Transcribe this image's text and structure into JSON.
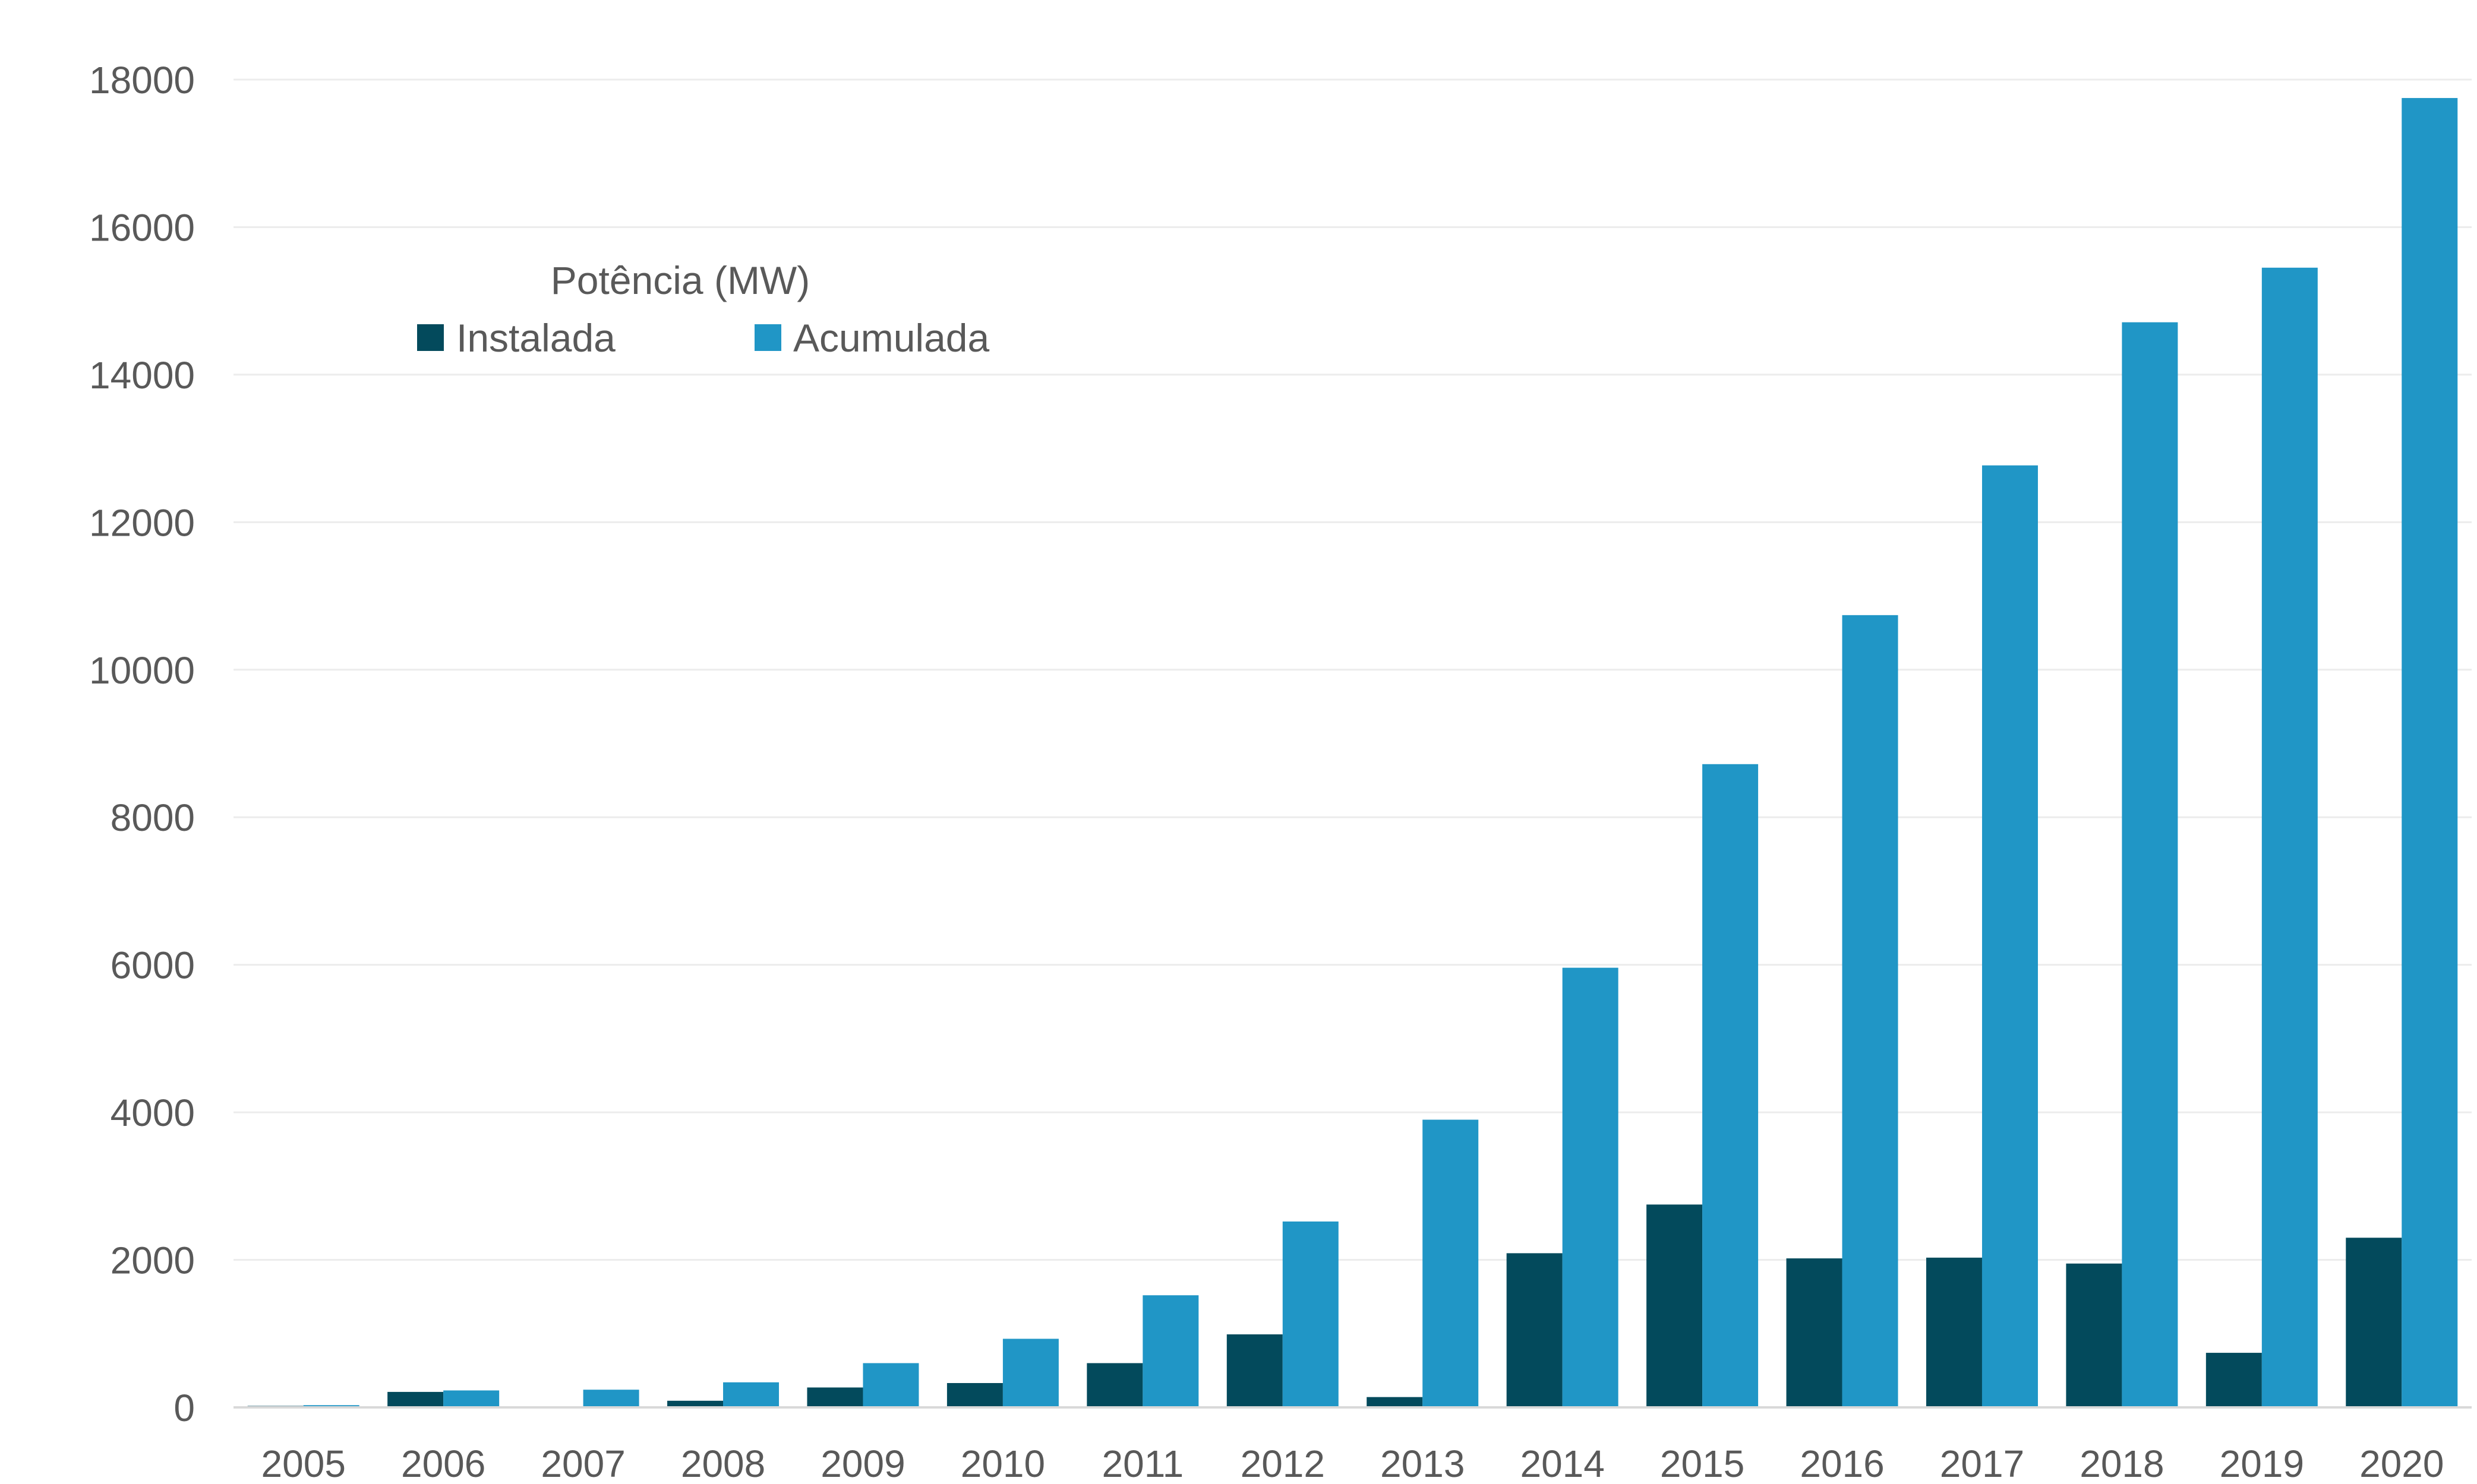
{
  "chart_data": {
    "type": "bar",
    "title": "",
    "xlabel": "",
    "ylabel": "",
    "categories": [
      "2005",
      "2006",
      "2007",
      "2008",
      "2009",
      "2010",
      "2011",
      "2012",
      "2013",
      "2014",
      "2015",
      "2016",
      "2017",
      "2018",
      "2019",
      "2020"
    ],
    "series": [
      {
        "name": "Instalada",
        "color": "#034a5c",
        "values": [
          20,
          210,
          0,
          90,
          270,
          330,
          600,
          990,
          140,
          2090,
          2750,
          2020,
          2030,
          1950,
          740,
          2300
        ]
      },
      {
        "name": "Acumulada",
        "color": "#2096c6",
        "values": [
          30,
          230,
          240,
          340,
          600,
          930,
          1520,
          2520,
          3900,
          5960,
          8720,
          10740,
          12770,
          14710,
          15450,
          17750
        ]
      }
    ],
    "ylim": [
      0,
      18000
    ],
    "yticks": [
      0,
      2000,
      4000,
      6000,
      8000,
      10000,
      12000,
      14000,
      16000,
      18000
    ],
    "grid": true,
    "legend": {
      "title": "Potência (MW)",
      "placement": "top-left"
    }
  }
}
